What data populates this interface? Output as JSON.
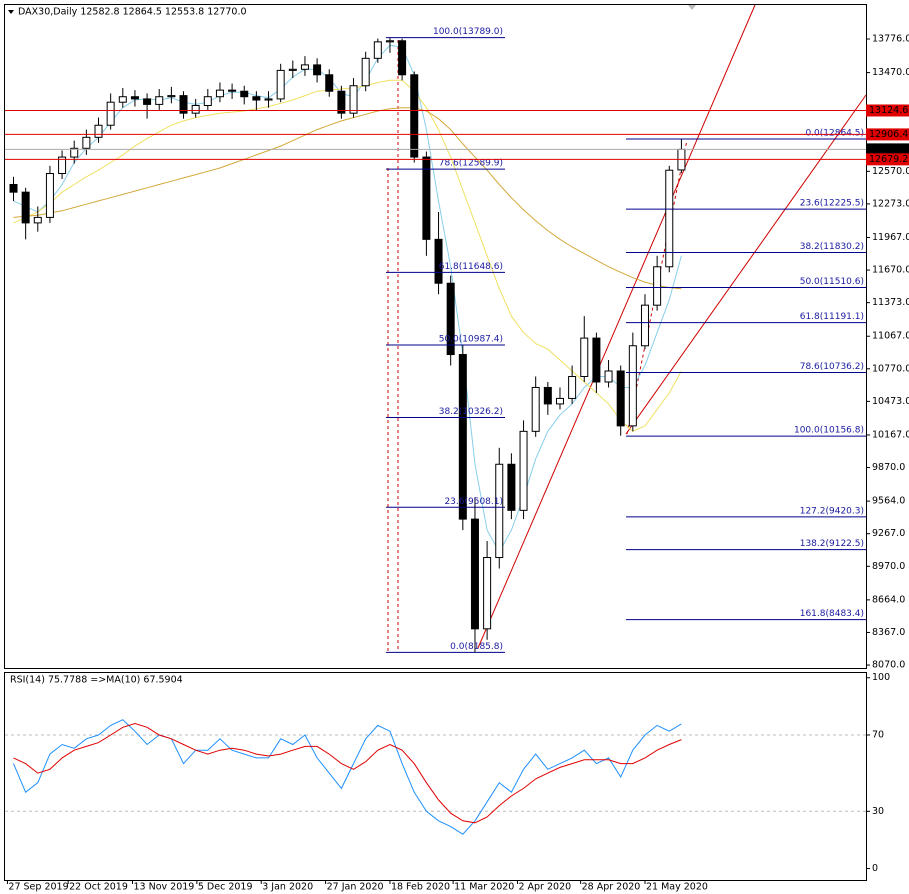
{
  "chart_data": [
    {
      "type": "candlestick",
      "title": "DAX30,Daily  12582.8 12864.5 12553.8 12770.0",
      "x": [
        0,
        1,
        2,
        3,
        4,
        5,
        6,
        7,
        8,
        9,
        10,
        11,
        12,
        13,
        14,
        15,
        16,
        17,
        18,
        19,
        20,
        21,
        22,
        23,
        24,
        25,
        26,
        27,
        28,
        29,
        30,
        31,
        32,
        33,
        34,
        35,
        36,
        37,
        38,
        39,
        40,
        41,
        42,
        43,
        44,
        45,
        46,
        47,
        48,
        49,
        50,
        51,
        52,
        53,
        54,
        55
      ],
      "open": [
        12450,
        12380,
        12100,
        12150,
        12550,
        12700,
        12780,
        12880,
        12990,
        13200,
        13250,
        13230,
        13180,
        13250,
        13260,
        13100,
        13170,
        13250,
        13310,
        13300,
        13250,
        13220,
        13230,
        13490,
        13500,
        13540,
        13450,
        13300,
        13100,
        13350,
        13600,
        13750,
        13760,
        13450,
        12700,
        11950,
        11550,
        10900,
        9400,
        8400,
        9050,
        9900,
        9480,
        10200,
        10600,
        10450,
        10500,
        10700,
        11050,
        10650,
        10750,
        10250,
        10980,
        11350,
        11700,
        12582.8
      ],
      "high": [
        12520,
        12420,
        12250,
        12620,
        12760,
        12850,
        12950,
        13060,
        13280,
        13330,
        13310,
        13280,
        13320,
        13340,
        13300,
        13230,
        13320,
        13380,
        13370,
        13350,
        13300,
        13300,
        13550,
        13580,
        13620,
        13600,
        13500,
        13350,
        13420,
        13660,
        13780,
        13789,
        13780,
        13480,
        12750,
        12200,
        11620,
        10990,
        9600,
        9200,
        10050,
        10000,
        10300,
        10700,
        10650,
        10600,
        10800,
        11250,
        11100,
        10850,
        10800,
        11100,
        11450,
        11800,
        12620,
        12864.5
      ],
      "low": [
        12300,
        11950,
        12020,
        12100,
        12500,
        12640,
        12720,
        12830,
        12950,
        13150,
        13160,
        13050,
        13130,
        13190,
        13050,
        13060,
        13130,
        13200,
        13230,
        13180,
        13120,
        13150,
        13200,
        13420,
        13440,
        13380,
        13250,
        13050,
        13060,
        13300,
        13560,
        13650,
        13400,
        12650,
        11800,
        11450,
        10800,
        9300,
        8190,
        8300,
        8950,
        9400,
        9400,
        10150,
        10350,
        10400,
        10450,
        10650,
        10550,
        10600,
        10160,
        10200,
        10950,
        11300,
        11650,
        12553.8
      ],
      "close": [
        12380,
        12100,
        12150,
        12550,
        12700,
        12780,
        12880,
        12990,
        13200,
        13250,
        13230,
        13180,
        13250,
        13260,
        13100,
        13170,
        13250,
        13310,
        13300,
        13250,
        13220,
        13230,
        13490,
        13500,
        13540,
        13450,
        13300,
        13100,
        13350,
        13600,
        13750,
        13760,
        13450,
        12700,
        11950,
        11550,
        10900,
        9400,
        8400,
        9050,
        9900,
        9480,
        10200,
        10600,
        10450,
        10500,
        10700,
        11050,
        10650,
        10750,
        10250,
        10980,
        11350,
        11700,
        12580,
        12770
      ],
      "overlays": [
        {
          "color": "#87ceeb",
          "values": [
            12300,
            12250,
            12200,
            12300,
            12450,
            12650,
            12780,
            12880,
            13020,
            13150,
            13220,
            13230,
            13220,
            13240,
            13200,
            13180,
            13200,
            13260,
            13290,
            13290,
            13260,
            13240,
            13320,
            13430,
            13500,
            13500,
            13420,
            13280,
            13250,
            13400,
            13600,
            13720,
            13700,
            13450,
            12950,
            12300,
            11700,
            10900,
            9900,
            9300,
            9100,
            9300,
            9600,
            9950,
            10200,
            10350,
            10450,
            10600,
            10700,
            10700,
            10600,
            10600,
            10800,
            11100,
            11400,
            11800
          ]
        },
        {
          "color": "#f0e060",
          "values": [
            12100,
            12150,
            12200,
            12280,
            12380,
            12450,
            12520,
            12580,
            12650,
            12720,
            12800,
            12870,
            12930,
            12990,
            13030,
            13060,
            13080,
            13100,
            13110,
            13120,
            13140,
            13160,
            13190,
            13220,
            13260,
            13300,
            13310,
            13320,
            13330,
            13350,
            13380,
            13400,
            13400,
            13300,
            13150,
            12950,
            12700,
            12400,
            12100,
            11800,
            11500,
            11250,
            11100,
            11000,
            10950,
            10850,
            10750,
            10650,
            10550,
            10450,
            10300,
            10200,
            10250,
            10400,
            10550,
            10750
          ]
        },
        {
          "color": "#d4a93a",
          "values": [
            12150,
            12160,
            12170,
            12190,
            12210,
            12240,
            12270,
            12300,
            12330,
            12360,
            12390,
            12420,
            12450,
            12480,
            12510,
            12540,
            12570,
            12600,
            12640,
            12680,
            12720,
            12760,
            12800,
            12850,
            12900,
            12950,
            12990,
            13030,
            13060,
            13090,
            13120,
            13140,
            13150,
            13150,
            13120,
            13050,
            12950,
            12820,
            12700,
            12580,
            12450,
            12330,
            12220,
            12120,
            12030,
            11950,
            11880,
            11820,
            11760,
            11700,
            11650,
            11600,
            11560,
            11530,
            11510,
            11500
          ]
        }
      ],
      "xlim": [
        -0.7,
        70.2
      ],
      "ylim": [
        8043,
        14086
      ],
      "yticks": [
        {
          "value": 13776,
          "label": "13776.0"
        },
        {
          "value": 13470,
          "label": "13470.0"
        },
        {
          "value": 12570,
          "label": "12570.0"
        },
        {
          "value": 12273,
          "label": "12273.0"
        },
        {
          "value": 11967,
          "label": "11967.0"
        },
        {
          "value": 11670,
          "label": "11670.0"
        },
        {
          "value": 11373,
          "label": "11373.0"
        },
        {
          "value": 11067,
          "label": "11067.0"
        },
        {
          "value": 10770,
          "label": "10770.0"
        },
        {
          "value": 10473,
          "label": "10473.0"
        },
        {
          "value": 10167,
          "label": "10167.0"
        },
        {
          "value": 9870,
          "label": "9870.0"
        },
        {
          "value": 9564,
          "label": "9564.0"
        },
        {
          "value": 9267,
          "label": "9267.0"
        },
        {
          "value": 8970,
          "label": "8970.0"
        },
        {
          "value": 8664,
          "label": "8664.0"
        },
        {
          "value": 8367,
          "label": "8367.0"
        },
        {
          "value": 8070,
          "label": "8070.0"
        }
      ],
      "hlines": [
        {
          "value": 13124.6,
          "label": "13124.6",
          "color": "#e00000"
        },
        {
          "value": 12906.4,
          "label": "12906.4",
          "color": "#e00000"
        },
        {
          "value": 12770,
          "label": "12770.0",
          "color": "#000000"
        },
        {
          "value": 12679.2,
          "label": "12679.2",
          "color": "#e00000"
        }
      ],
      "fib": [
        {
          "levels": [
            {
              "value": 13789.0,
              "label": "100.0(13789.0)"
            },
            {
              "value": 12589.9,
              "label": "78.6(12589.9)"
            },
            {
              "value": 11648.6,
              "label": "61.8(11648.6)"
            },
            {
              "value": 10987.4,
              "label": "50.0(10987.4)"
            },
            {
              "value": 10326.2,
              "label": "38.2(10326.2)"
            },
            {
              "value": 9508.1,
              "label": "23.6(9508.1)"
            },
            {
              "value": 8185.8,
              "label": "0.0(8185.8)"
            }
          ]
        },
        {
          "levels": [
            {
              "value": 12864.5,
              "label": "0.0(12864.5)"
            },
            {
              "value": 12225.5,
              "label": "23.6(12225.5)"
            },
            {
              "value": 11830.2,
              "label": "38.2(11830.2)"
            },
            {
              "value": 11510.6,
              "label": "50.0(11510.6)"
            },
            {
              "value": 11191.1,
              "label": "61.8(11191.1)"
            },
            {
              "value": 10736.2,
              "label": "78.6(10736.2)"
            },
            {
              "value": 10156.8,
              "label": "100.0(10156.8)"
            },
            {
              "value": 9420.3,
              "label": "127.2(9420.3)"
            },
            {
              "value": 9122.5,
              "label": "138.2(9122.5)"
            },
            {
              "value": 8483.4,
              "label": "161.8(8483.4)"
            }
          ]
        }
      ]
    },
    {
      "type": "line",
      "title": "RSI(14) 75.7788  =>MA(10) 67.5904",
      "x": [
        0,
        1,
        2,
        3,
        4,
        5,
        6,
        7,
        8,
        9,
        10,
        11,
        12,
        13,
        14,
        15,
        16,
        17,
        18,
        19,
        20,
        21,
        22,
        23,
        24,
        25,
        26,
        27,
        28,
        29,
        30,
        31,
        32,
        33,
        34,
        35,
        36,
        37,
        38,
        39,
        40,
        41,
        42,
        43,
        44,
        45,
        46,
        47,
        48,
        49,
        50,
        51,
        52,
        53,
        54,
        55
      ],
      "series": [
        {
          "color": "#1e90ff",
          "values": [
            55,
            40,
            45,
            60,
            65,
            63,
            68,
            70,
            75,
            78,
            72,
            65,
            70,
            68,
            55,
            62,
            62,
            68,
            62,
            60,
            58,
            58,
            68,
            65,
            70,
            58,
            50,
            42,
            55,
            68,
            75,
            72,
            55,
            40,
            30,
            25,
            22,
            18,
            25,
            35,
            45,
            40,
            52,
            60,
            52,
            55,
            58,
            62,
            55,
            58,
            48,
            62,
            70,
            75,
            72,
            75.7788
          ]
        },
        {
          "color": "#e00000",
          "values": [
            58,
            55,
            50,
            52,
            58,
            62,
            64,
            66,
            70,
            74,
            76,
            74,
            70,
            68,
            65,
            62,
            60,
            62,
            63,
            62,
            60,
            59,
            60,
            62,
            64,
            64,
            60,
            55,
            52,
            56,
            62,
            65,
            62,
            55,
            45,
            36,
            29,
            25,
            24,
            27,
            33,
            38,
            42,
            47,
            50,
            53,
            55,
            57,
            57,
            57,
            55,
            55,
            58,
            62,
            65,
            67.5904
          ]
        }
      ],
      "xlim": [
        -0.7,
        70.2
      ],
      "ylim": [
        -6,
        103
      ],
      "yticks": [
        100,
        70,
        30,
        0
      ],
      "grid_ticks": [
        70,
        30
      ],
      "xticks": [
        {
          "value": -0.5,
          "label": "27 Sep 2019"
        },
        {
          "value": 4.5,
          "label": "22 Oct 2019"
        },
        {
          "value": 9.8,
          "label": "13 Nov 2019"
        },
        {
          "value": 15.1,
          "label": "5 Dec 2019"
        },
        {
          "value": 20.4,
          "label": "3 Jan 2020"
        },
        {
          "value": 25.7,
          "label": "27 Jan 2020"
        },
        {
          "value": 31.0,
          "label": "18 Feb 2020"
        },
        {
          "value": 36.2,
          "label": "11 Mar 2020"
        },
        {
          "value": 41.5,
          "label": "2 Apr 2020"
        },
        {
          "value": 46.7,
          "label": "28 Apr 2020"
        },
        {
          "value": 52.0,
          "label": "21 May 2020"
        }
      ]
    }
  ]
}
